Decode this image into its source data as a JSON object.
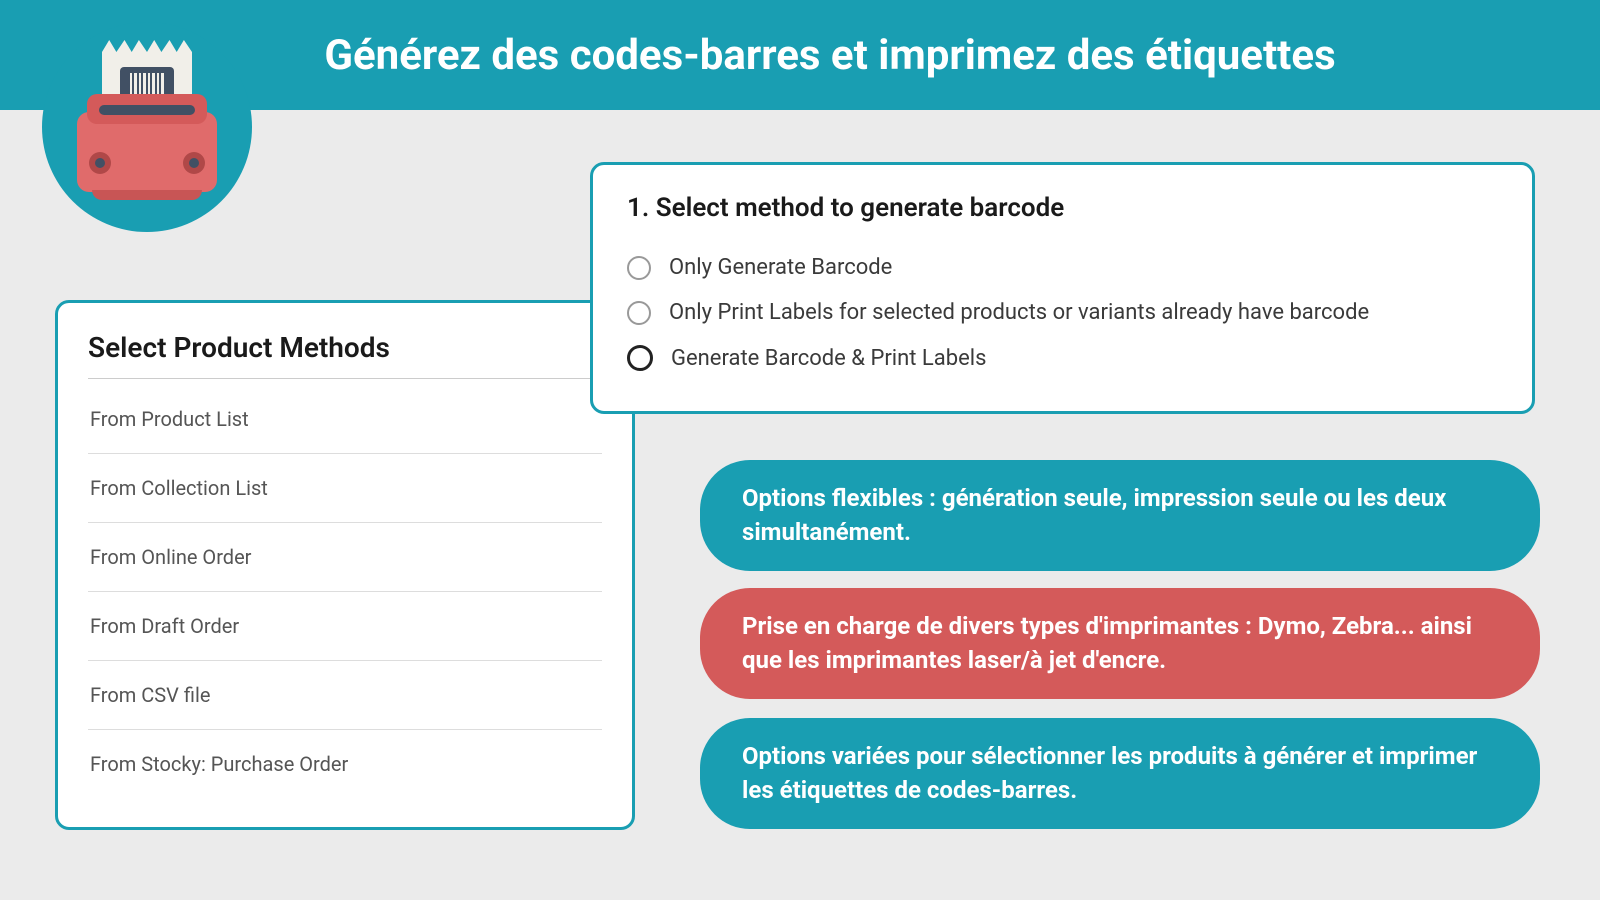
{
  "header": {
    "title": "Générez des codes-barres et imprimez des étiquettes"
  },
  "leftPanel": {
    "title": "Select Product Methods",
    "items": [
      "From Product List",
      "From Collection List",
      "From Online Order",
      "From Draft Order",
      "From CSV file",
      "From Stocky: Purchase Order"
    ]
  },
  "rightPanel": {
    "title": "1. Select method to generate barcode",
    "options": [
      "Only Generate Barcode",
      "Only Print Labels for selected products or variants already have barcode",
      "Generate Barcode & Print Labels"
    ]
  },
  "pills": [
    "Options flexibles : génération seule, impression seule ou les deux simultanément.",
    "Prise en charge de divers types d'imprimantes : Dymo, Zebra... ainsi que les imprimantes laser/à jet d'encre.",
    "Options variées pour sélectionner les produits à générer et imprimer les étiquettes de codes-barres."
  ],
  "colors": {
    "teal": "#199eb2",
    "red": "#d45a5a",
    "bg": "#ebebeb"
  }
}
